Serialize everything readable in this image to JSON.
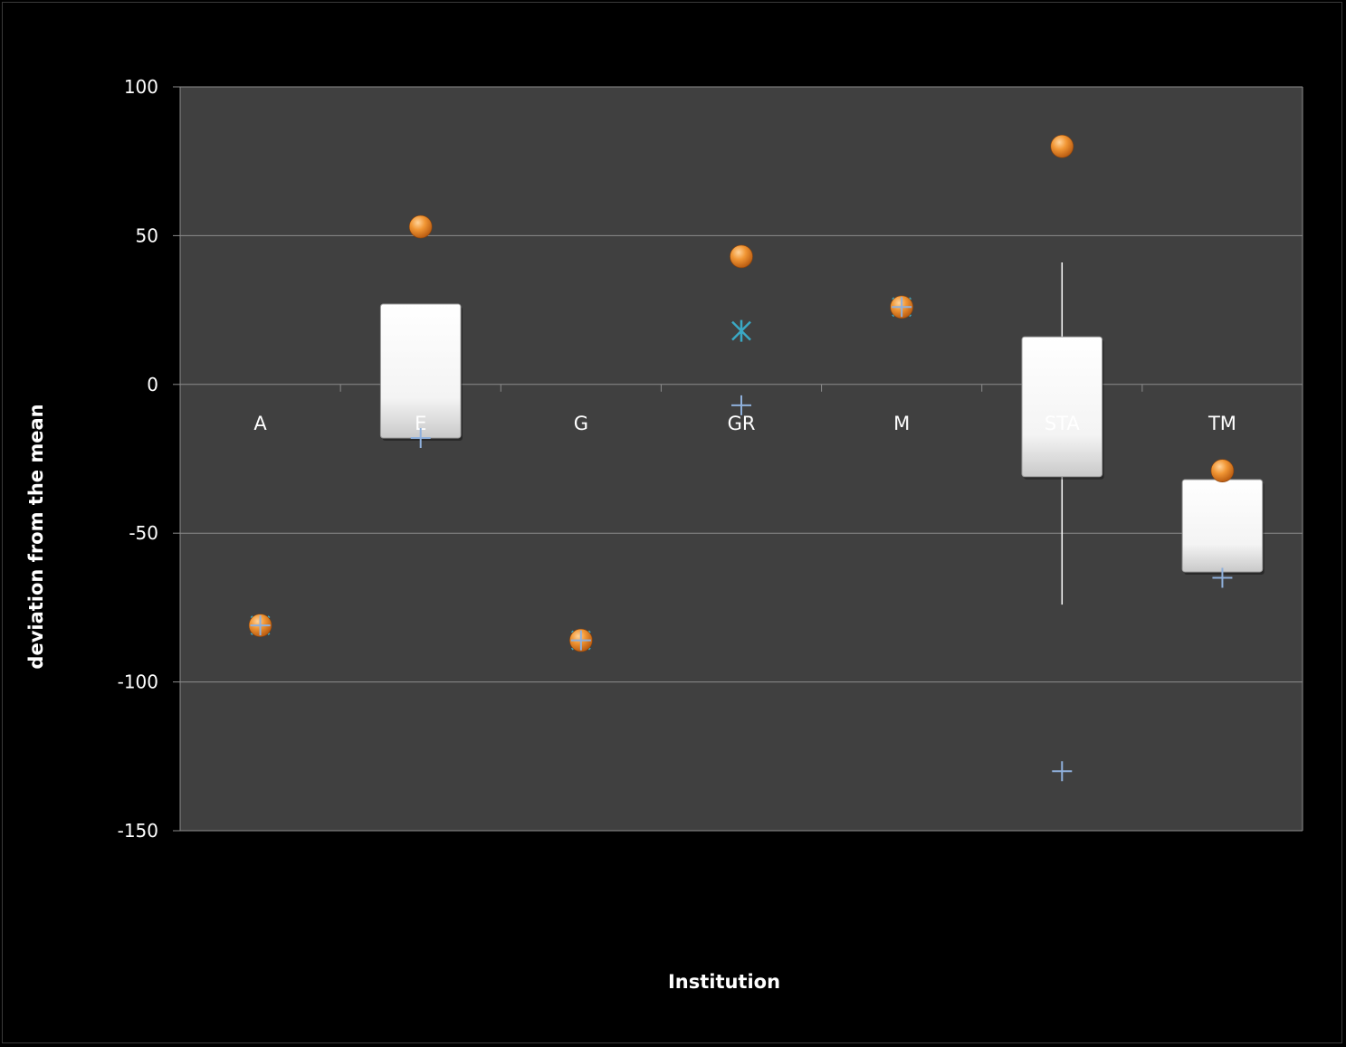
{
  "chart_data": {
    "type": "box",
    "xlabel": "Institution",
    "ylabel": "deviation from the mean",
    "ylim": [
      -150,
      100
    ],
    "yticks": [
      100,
      50,
      0,
      -50,
      -100,
      -150
    ],
    "grid": true,
    "categories": [
      "A",
      "E",
      "G",
      "GR",
      "M",
      "STA",
      "TM"
    ],
    "boxes": [
      {
        "category": "E",
        "q1": -18,
        "q3": 27
      },
      {
        "category": "STA",
        "q1": -31,
        "q3": 16,
        "whisker_low": -74,
        "whisker_high": 41
      },
      {
        "category": "TM",
        "q1": -63,
        "q3": -32
      }
    ],
    "series": [
      {
        "marker": "circle",
        "color": "#e8822a",
        "values": [
          -81,
          53,
          -86,
          43,
          26,
          80,
          -29
        ]
      },
      {
        "marker": "cross",
        "color": "#8fb0dc",
        "values": [
          -81,
          -18,
          -86,
          -7,
          26,
          -130,
          -65
        ]
      },
      {
        "marker": "asterisk",
        "color": "#3aa8c4",
        "values": [
          -81,
          null,
          -86,
          18,
          26,
          null,
          null
        ]
      }
    ]
  }
}
